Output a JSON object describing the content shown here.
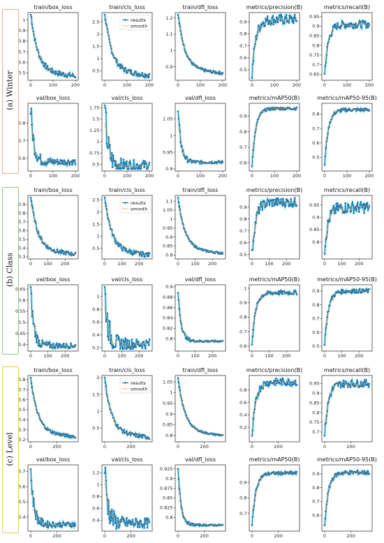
{
  "sections": [
    {
      "label": "(a) Winter",
      "border_color": "#f4a98a",
      "xmax": 200,
      "xticks": [
        0,
        100,
        200
      ],
      "legend": {
        "results": "results",
        "smooth": "smooth"
      },
      "panels": [
        {
          "title": "train/box_loss",
          "ylim": [
            0.45,
            1.05
          ],
          "yticks": [
            0.5,
            0.6,
            0.7,
            0.8,
            0.9,
            1.0
          ],
          "shape": "loss",
          "start": 1.03,
          "end": 0.47,
          "noise": 0.01,
          "legend": false
        },
        {
          "title": "train/cls_loss",
          "ylim": [
            0.2,
            2.8
          ],
          "yticks": [
            0.5,
            1.0,
            1.5,
            2.0,
            2.5
          ],
          "shape": "loss",
          "start": 2.7,
          "end": 0.32,
          "noise": 0.01,
          "legend": true
        },
        {
          "title": "train/dfl_loss",
          "ylim": [
            0.83,
            1.22
          ],
          "yticks": [
            0.9,
            1.0,
            1.1,
            1.2
          ],
          "shape": "loss",
          "start": 1.2,
          "end": 0.86,
          "noise": 0.005,
          "legend": false
        },
        {
          "title": "metrics/precision(B)",
          "ylim": [
            0.43,
            0.96
          ],
          "yticks": [
            0.5,
            0.6,
            0.7,
            0.8,
            0.9
          ],
          "shape": "metric",
          "start": 0.45,
          "end": 0.92,
          "noise": 0.02,
          "legend": false
        },
        {
          "title": "metrics/recall(B)",
          "ylim": [
            0.63,
            0.96
          ],
          "yticks": [
            0.65,
            0.7,
            0.75,
            0.8,
            0.85,
            0.9,
            0.95
          ],
          "shape": "metric",
          "start": 0.65,
          "end": 0.91,
          "noise": 0.015,
          "legend": false
        },
        {
          "title": "val/box_loss",
          "ylim": [
            0.54,
            0.9
          ],
          "yticks": [
            0.6,
            0.7,
            0.8
          ],
          "shape": "vloss",
          "start": 0.88,
          "end": 0.58,
          "noise": 0.012,
          "legend": false
        },
        {
          "title": "val/cls_loss",
          "ylim": [
            0.4,
            1.8
          ],
          "yticks": [
            0.5,
            0.75,
            1.0,
            1.25,
            1.5,
            1.75
          ],
          "shape": "vloss",
          "start": 1.72,
          "end": 0.48,
          "noise": 0.02,
          "legend": false
        },
        {
          "title": "val/dfl_loss",
          "ylim": [
            0.9,
            1.09
          ],
          "yticks": [
            0.9,
            0.95,
            1.0,
            1.05
          ],
          "shape": "vloss",
          "start": 1.07,
          "end": 0.92,
          "noise": 0.005,
          "legend": false
        },
        {
          "title": "metrics/mAP50(B)",
          "ylim": [
            0.56,
            0.97
          ],
          "yticks": [
            0.6,
            0.7,
            0.8,
            0.9
          ],
          "shape": "metric",
          "start": 0.58,
          "end": 0.95,
          "noise": 0.005,
          "legend": false
        },
        {
          "title": "metrics/mAP50-95(B)",
          "ylim": [
            0.42,
            0.86
          ],
          "yticks": [
            0.5,
            0.6,
            0.7,
            0.8
          ],
          "shape": "metric",
          "start": 0.45,
          "end": 0.83,
          "noise": 0.006,
          "legend": false
        }
      ]
    },
    {
      "label": "(b) Class",
      "border_color": "#86c98a",
      "xmax": 260,
      "xticks": [
        0,
        100,
        200
      ],
      "legend": {
        "results": "results",
        "smooth": "smooth"
      },
      "panels": [
        {
          "title": "train/box_loss",
          "ylim": [
            0.3,
            0.98
          ],
          "yticks": [
            0.3,
            0.4,
            0.5,
            0.6,
            0.7,
            0.8,
            0.9
          ],
          "shape": "loss",
          "start": 0.95,
          "end": 0.33,
          "noise": 0.008,
          "legend": false
        },
        {
          "title": "train/cls_loss",
          "ylim": [
            0.15,
            2.6
          ],
          "yticks": [
            0.5,
            1.0,
            1.5,
            2.0,
            2.5
          ],
          "shape": "loss",
          "start": 2.5,
          "end": 0.22,
          "noise": 0.01,
          "legend": true
        },
        {
          "title": "train/dfl_loss",
          "ylim": [
            0.79,
            1.12
          ],
          "yticks": [
            0.8,
            0.85,
            0.9,
            0.95,
            1.0,
            1.05,
            1.1
          ],
          "shape": "loss",
          "start": 1.1,
          "end": 0.81,
          "noise": 0.004,
          "legend": false
        },
        {
          "title": "metrics/precision(B)",
          "ylim": [
            0.48,
            0.98
          ],
          "yticks": [
            0.5,
            0.6,
            0.7,
            0.8,
            0.9
          ],
          "shape": "metric",
          "start": 0.5,
          "end": 0.94,
          "noise": 0.02,
          "legend": false
        },
        {
          "title": "metrics/recall(B)",
          "ylim": [
            0.74,
            0.98
          ],
          "yticks": [
            0.8,
            0.85,
            0.9,
            0.95
          ],
          "shape": "metric",
          "start": 0.77,
          "end": 0.94,
          "noise": 0.025,
          "legend": false
        },
        {
          "title": "val/box_loss",
          "ylim": [
            0.38,
            0.66
          ],
          "yticks": [
            0.4,
            0.45,
            0.5,
            0.55,
            0.6,
            0.65
          ],
          "shape": "vloss",
          "start": 0.64,
          "end": 0.395,
          "noise": 0.01,
          "legend": false
        },
        {
          "title": "val/cls_loss",
          "ylim": [
            0.18,
            1.15
          ],
          "yticks": [
            0.2,
            0.4,
            0.6,
            0.8,
            1.0
          ],
          "shape": "vloss",
          "start": 1.1,
          "end": 0.26,
          "noise": 0.02,
          "legend": false
        },
        {
          "title": "val/dfl_loss",
          "ylim": [
            0.78,
            0.9
          ],
          "yticks": [
            0.8,
            0.82,
            0.84,
            0.86,
            0.88,
            0.9
          ],
          "shape": "vloss",
          "start": 0.89,
          "end": 0.795,
          "noise": 0.003,
          "legend": false
        },
        {
          "title": "metrics/mAP50(B)",
          "ylim": [
            0.58,
            1.01
          ],
          "yticks": [
            0.6,
            0.7,
            0.8,
            0.9,
            1.0
          ],
          "shape": "metric",
          "start": 0.62,
          "end": 0.97,
          "noise": 0.008,
          "legend": false
        },
        {
          "title": "metrics/mAP50-95(B)",
          "ylim": [
            0.48,
            0.93
          ],
          "yticks": [
            0.5,
            0.6,
            0.7,
            0.8,
            0.9
          ],
          "shape": "metric",
          "start": 0.52,
          "end": 0.9,
          "noise": 0.008,
          "legend": false
        }
      ]
    },
    {
      "label": "(c) Level",
      "border_color": "#f0c65a",
      "xmax": 340,
      "xticks": [
        0,
        200
      ],
      "legend": {
        "results": "results",
        "smooth": "smooth"
      },
      "panels": [
        {
          "title": "train/box_loss",
          "ylim": [
            0.2,
            0.82
          ],
          "yticks": [
            0.2,
            0.3,
            0.4,
            0.5,
            0.6,
            0.7,
            0.8
          ],
          "shape": "loss",
          "start": 0.78,
          "end": 0.23,
          "noise": 0.006,
          "legend": false
        },
        {
          "title": "train/cls_loss",
          "ylim": [
            0.15,
            2.0
          ],
          "yticks": [
            0.5,
            1.0,
            1.5,
            2.0
          ],
          "shape": "loss",
          "start": 1.85,
          "end": 0.22,
          "noise": 0.008,
          "legend": true
        },
        {
          "title": "train/dfl_loss",
          "ylim": [
            0.78,
            1.07
          ],
          "yticks": [
            0.8,
            0.85,
            0.9,
            0.95,
            1.0,
            1.05
          ],
          "shape": "loss",
          "start": 1.05,
          "end": 0.8,
          "noise": 0.003,
          "legend": false
        },
        {
          "title": "metrics/precision(B)",
          "ylim": [
            0.0,
            1.0
          ],
          "yticks": [
            0.2,
            0.4,
            0.6,
            0.8
          ],
          "shape": "metric",
          "start": 0.02,
          "end": 0.93,
          "noise": 0.015,
          "legend": false
        },
        {
          "title": "metrics/recall(B)",
          "ylim": [
            0.66,
            0.98
          ],
          "yticks": [
            0.7,
            0.75,
            0.8,
            0.85,
            0.9,
            0.95
          ],
          "shape": "metric",
          "start": 0.68,
          "end": 0.95,
          "noise": 0.015,
          "legend": false
        },
        {
          "title": "val/box_loss",
          "ylim": [
            0.32,
            0.73
          ],
          "yticks": [
            0.4,
            0.5,
            0.6,
            0.7
          ],
          "shape": "vloss",
          "start": 0.71,
          "end": 0.35,
          "noise": 0.01,
          "legend": false
        },
        {
          "title": "val/cls_loss",
          "ylim": [
            0.25,
            1.3
          ],
          "yticks": [
            0.4,
            0.6,
            0.8,
            1.0,
            1.2
          ],
          "shape": "vloss",
          "start": 1.25,
          "end": 0.35,
          "noise": 0.02,
          "legend": false
        },
        {
          "title": "val/dfl_loss",
          "ylim": [
            0.77,
            0.93
          ],
          "yticks": [
            0.8,
            0.825,
            0.85,
            0.875,
            0.9,
            0.925
          ],
          "shape": "vloss",
          "start": 0.92,
          "end": 0.78,
          "noise": 0.003,
          "legend": false
        },
        {
          "title": "metrics/mAP50(B)",
          "ylim": [
            0.6,
            1.0
          ],
          "yticks": [
            0.7,
            0.8,
            0.9
          ],
          "shape": "metric",
          "start": 0.62,
          "end": 0.96,
          "noise": 0.006,
          "legend": false
        },
        {
          "title": "metrics/mAP50-95(B)",
          "ylim": [
            0.5,
            0.95
          ],
          "yticks": [
            0.6,
            0.7,
            0.8,
            0.9
          ],
          "shape": "metric",
          "start": 0.52,
          "end": 0.91,
          "noise": 0.008,
          "legend": false
        }
      ]
    }
  ],
  "colors": {
    "results": "#1f77b4",
    "smooth": "#ff7f0e",
    "marker_fill": "#1f77b4",
    "halo": "#17becf"
  },
  "chart_data": {
    "type": "line",
    "grid": false,
    "legend_placement": "upper right",
    "series_names": [
      "results",
      "smooth"
    ],
    "note_xaxis": "epochs"
  }
}
